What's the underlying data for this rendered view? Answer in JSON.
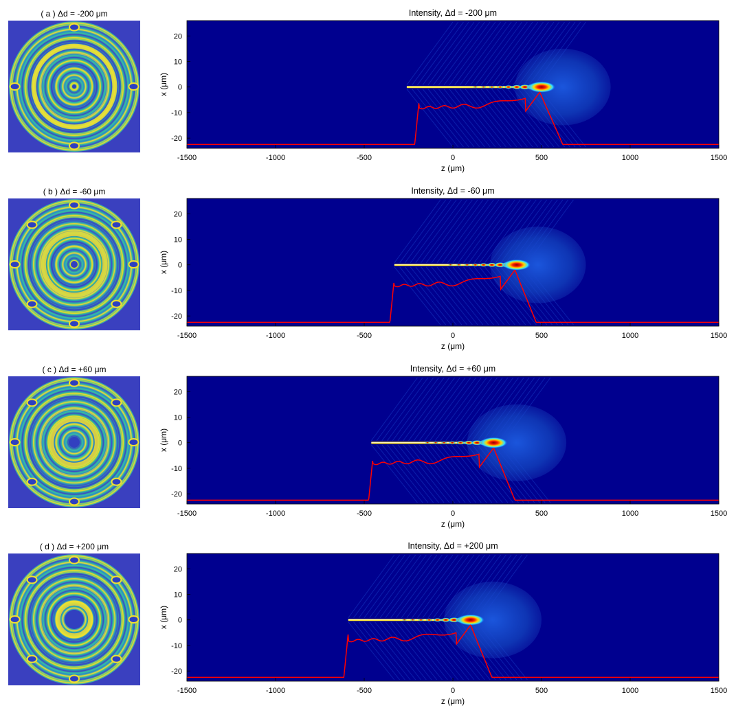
{
  "colors": {
    "background": "#00008f",
    "profile_line": "#ff0000",
    "beam_core": "#ffe000",
    "halo": "#1444c8",
    "axis": "#000000"
  },
  "x_axis_label": "z (μm)",
  "y_axis_label": "x (μm)",
  "x_tick_labels": [
    "-1500",
    "-1000",
    "-500",
    "0",
    "500",
    "1000",
    "1500"
  ],
  "y_tick_labels": [
    "20",
    "10",
    "0",
    "-10",
    "-20"
  ],
  "chart_data": [
    {
      "type": "heatmap",
      "panel_label": "( a )  Δd = -200 μm",
      "title": "Intensity, Δd = -200 μm",
      "delta_d_um": -200,
      "xlim": [
        -1500,
        1500
      ],
      "ylim": [
        -24,
        26
      ],
      "xticks": [
        -1500,
        -1000,
        -500,
        0,
        500,
        1000,
        1500
      ],
      "yticks": [
        20,
        10,
        0,
        -10,
        -20
      ],
      "beam_start_z": -260,
      "beam_peak_z": 500,
      "halo_end_z": 890,
      "profile_rise_z": -190,
      "profile_peak_z": 490,
      "profile_fall_z": 620
    },
    {
      "type": "heatmap",
      "panel_label": "( b )  Δd = -60 μm",
      "title": "Intensity, Δd = -60 μm",
      "delta_d_um": -60,
      "xlim": [
        -1500,
        1500
      ],
      "ylim": [
        -24,
        26
      ],
      "xticks": [
        -1500,
        -1000,
        -500,
        0,
        500,
        1000,
        1500
      ],
      "yticks": [
        20,
        10,
        0,
        -10,
        -20
      ],
      "beam_start_z": -330,
      "beam_peak_z": 360,
      "halo_end_z": 750,
      "profile_rise_z": -330,
      "profile_peak_z": 350,
      "profile_fall_z": 470
    },
    {
      "type": "heatmap",
      "panel_label": "( c )  Δd = +60 μm",
      "title": "Intensity, Δd = +60 μm",
      "delta_d_um": 60,
      "xlim": [
        -1500,
        1500
      ],
      "ylim": [
        -24,
        26
      ],
      "xticks": [
        -1500,
        -1000,
        -500,
        0,
        500,
        1000,
        1500
      ],
      "yticks": [
        20,
        10,
        0,
        -10,
        -20
      ],
      "beam_start_z": -460,
      "beam_peak_z": 230,
      "halo_end_z": 640,
      "profile_rise_z": -450,
      "profile_peak_z": 230,
      "profile_fall_z": 350
    },
    {
      "type": "heatmap",
      "panel_label": "( d )  Δd = +200 μm",
      "title": "Intensity, Δd = +200 μm",
      "delta_d_um": 200,
      "xlim": [
        -1500,
        1500
      ],
      "ylim": [
        -24,
        26
      ],
      "xticks": [
        -1500,
        -1000,
        -500,
        0,
        500,
        1000,
        1500
      ],
      "yticks": [
        20,
        10,
        0,
        -10,
        -20
      ],
      "beam_start_z": -590,
      "beam_peak_z": 100,
      "halo_end_z": 500,
      "profile_rise_z": -590,
      "profile_peak_z": 100,
      "profile_fall_z": 220
    }
  ]
}
